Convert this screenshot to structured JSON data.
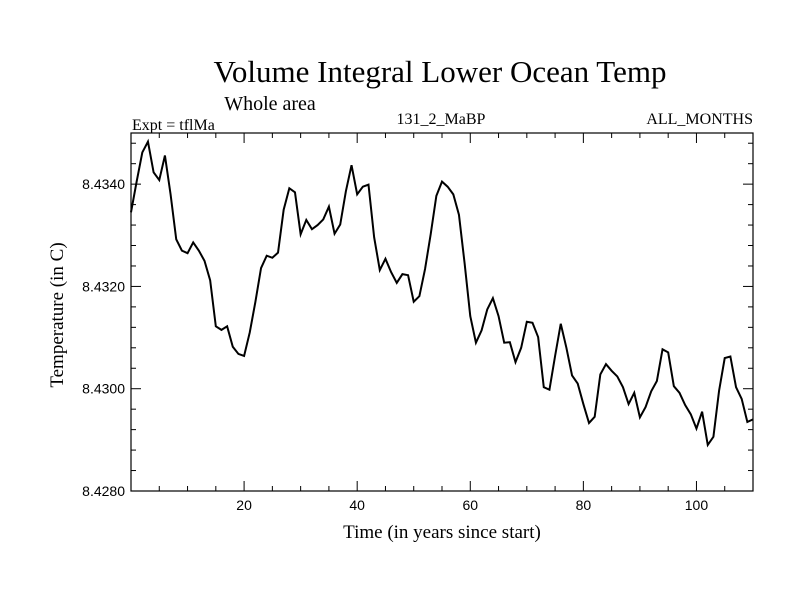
{
  "chart_data": {
    "type": "line",
    "title": "Volume Integral Lower Ocean Temp",
    "subtitle": "Whole area",
    "left_label": "Expt = tflMa",
    "center_label": "131_2_MaBP",
    "right_label": "ALL_MONTHS",
    "xlabel": "Time (in years since start)",
    "ylabel": "Temperature (in C)",
    "xlim": [
      0,
      110
    ],
    "ylim": [
      8.428,
      8.435
    ],
    "xticks": [
      20,
      40,
      60,
      80,
      100
    ],
    "xtick_labels": [
      "20",
      "40",
      "60",
      "80",
      "100"
    ],
    "yticks": [
      8.428,
      8.43,
      8.432,
      8.434
    ],
    "ytick_labels": [
      "8.4280",
      "8.4300",
      "8.4320",
      "8.4340"
    ],
    "series": [
      {
        "name": "Temperature",
        "x": [
          0,
          1,
          2,
          3,
          4,
          5,
          6,
          7,
          8,
          9,
          10,
          11,
          12,
          13,
          14,
          15,
          16,
          17,
          18,
          19,
          20,
          21,
          22,
          23,
          24,
          25,
          26,
          27,
          28,
          29,
          30,
          31,
          32,
          33,
          34,
          35,
          36,
          37,
          38,
          39,
          40,
          41,
          42,
          43,
          44,
          45,
          46,
          47,
          48,
          49,
          50,
          51,
          52,
          53,
          54,
          55,
          56,
          57,
          58,
          59,
          60,
          61,
          62,
          63,
          64,
          65,
          66,
          67,
          68,
          69,
          70,
          71,
          72,
          73,
          74,
          75,
          76,
          77,
          78,
          79,
          80,
          81,
          82,
          83,
          84,
          85,
          86,
          87,
          88,
          89,
          90,
          91,
          92,
          93,
          94,
          95,
          96,
          97,
          98,
          99,
          100,
          101,
          102,
          103,
          104,
          105,
          106,
          107,
          108,
          109,
          110
        ],
        "values": [
          8.43345,
          8.43405,
          8.43462,
          8.43483,
          8.43423,
          8.43408,
          8.43456,
          8.4338,
          8.43292,
          8.4327,
          8.43265,
          8.43286,
          8.4327,
          8.4325,
          8.43212,
          8.43122,
          8.43115,
          8.43122,
          8.43082,
          8.43068,
          8.43064,
          8.4311,
          8.4317,
          8.43236,
          8.4326,
          8.43256,
          8.43266,
          8.4335,
          8.43392,
          8.43384,
          8.43302,
          8.4333,
          8.43312,
          8.4332,
          8.43331,
          8.43356,
          8.43303,
          8.43321,
          8.43386,
          8.43437,
          8.4338,
          8.43395,
          8.43399,
          8.43296,
          8.43232,
          8.43254,
          8.43228,
          8.43207,
          8.43224,
          8.43222,
          8.4317,
          8.43181,
          8.43234,
          8.43302,
          8.43377,
          8.43405,
          8.43395,
          8.4338,
          8.4334,
          8.43245,
          8.43142,
          8.4309,
          8.43114,
          8.43155,
          8.43177,
          8.43142,
          8.4309,
          8.43091,
          8.43052,
          8.4308,
          8.43131,
          8.43129,
          8.43101,
          8.43003,
          8.42998,
          8.43064,
          8.43127,
          8.4308,
          8.43026,
          8.4301,
          8.4297,
          8.42933,
          8.42945,
          8.43028,
          8.43048,
          8.43035,
          8.43024,
          8.43003,
          8.4297,
          8.42992,
          8.42944,
          8.42964,
          8.42995,
          8.43015,
          8.43077,
          8.43071,
          8.43005,
          8.42992,
          8.42968,
          8.4295,
          8.42922,
          8.42955,
          8.4289,
          8.42906,
          8.42996,
          8.4306,
          8.43063,
          8.43003,
          8.4298,
          8.42935,
          8.4294
        ]
      }
    ]
  }
}
